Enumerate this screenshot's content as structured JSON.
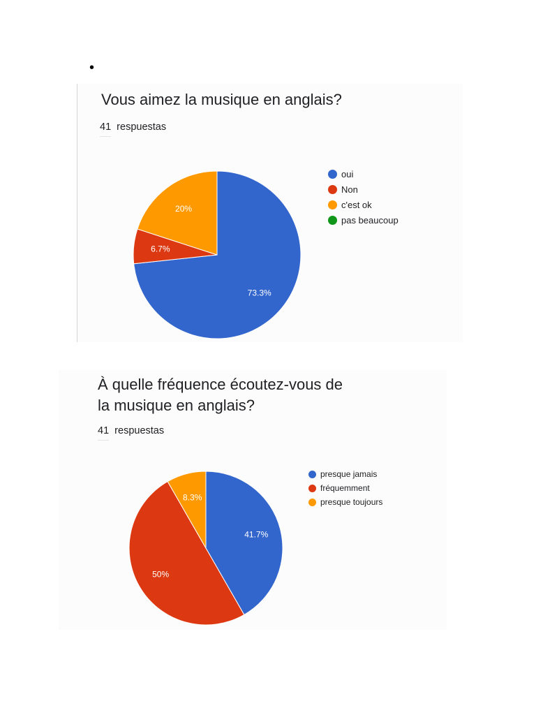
{
  "bullet": "•",
  "charts": [
    {
      "title": "Vous aimez la musique en anglais?",
      "response_count": "41",
      "response_label": "respuestas"
    },
    {
      "title": "À quelle fréquence écoutez-vous de la musique en anglais?",
      "response_count": "41",
      "response_label": "respuestas"
    }
  ],
  "chart_data": [
    {
      "type": "pie",
      "title": "Vous aimez la musique en anglais?",
      "slices": [
        {
          "name": "oui",
          "value": 73.3,
          "label": "73.3%",
          "color": "#3366cc"
        },
        {
          "name": "Non",
          "value": 6.7,
          "label": "6.7%",
          "color": "#dc3912"
        },
        {
          "name": "c'est ok",
          "value": 20,
          "label": "20%",
          "color": "#ff9900"
        },
        {
          "name": "pas beaucoup",
          "value": 0,
          "label": "",
          "color": "#109618"
        }
      ],
      "legend": "right"
    },
    {
      "type": "pie",
      "title": "À quelle fréquence écoutez-vous de la musique en anglais?",
      "slices": [
        {
          "name": "presque jamais",
          "value": 41.7,
          "label": "41.7%",
          "color": "#3366cc"
        },
        {
          "name": "fréquemment",
          "value": 50,
          "label": "50%",
          "color": "#dc3912"
        },
        {
          "name": "presque toujours",
          "value": 8.3,
          "label": "8.3%",
          "color": "#ff9900"
        }
      ],
      "legend": "right"
    }
  ]
}
